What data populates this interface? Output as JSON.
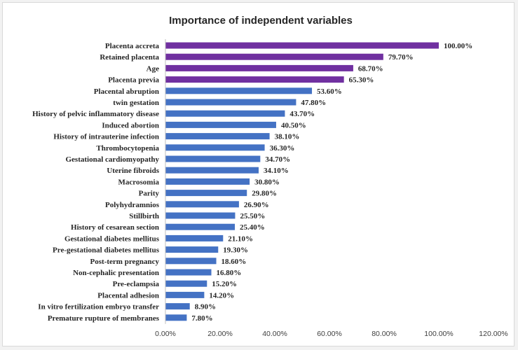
{
  "chart_data": {
    "type": "bar",
    "orientation": "horizontal",
    "title": "Importance of independent variables",
    "xlabel": "",
    "ylabel": "",
    "xlim": [
      0,
      120
    ],
    "x_ticks": [
      "0.00%",
      "20.00%",
      "40.00%",
      "60.00%",
      "80.00%",
      "100.00%",
      "120.00%"
    ],
    "grid": false,
    "legend": "none",
    "colors": {
      "highlight": "#7030a0",
      "default": "#4472c4"
    },
    "categories": [
      "Placenta accreta",
      "Retained placenta",
      "Age",
      "Placenta previa",
      "Placental abruption",
      "twin gestation",
      "History of pelvic inflammatory disease",
      "Induced abortion",
      "History of intrauterine infection",
      "Thrombocytopenia",
      "Gestational cardiomyopathy",
      "Uterine fibroids",
      "Macrosomia",
      "Parity",
      "Polyhydramnios",
      "Stillbirth",
      "History of cesarean section",
      "Gestational diabetes mellitus",
      "Pre-gestational diabetes mellitus",
      "Post-term pregnancy",
      "Non-cephalic presentation",
      "Pre-eclampsia",
      "Placental adhesion",
      "In vitro fertilization embryo transfer",
      "Premature rupture of membranes"
    ],
    "values": [
      100,
      79.7,
      68.7,
      65.3,
      53.6,
      47.8,
      43.7,
      40.5,
      38.1,
      36.3,
      34.7,
      34.1,
      30.8,
      29.8,
      26.9,
      25.5,
      25.4,
      21.1,
      19.3,
      18.6,
      16.8,
      15.2,
      14.2,
      8.9,
      7.8
    ],
    "value_labels": [
      "100.00%",
      "79.70%",
      "68.70%",
      "65.30%",
      "53.60%",
      "47.80%",
      "43.70%",
      "40.50%",
      "38.10%",
      "36.30%",
      "34.70%",
      "34.10%",
      "30.80%",
      "29.80%",
      "26.90%",
      "25.50%",
      "25.40%",
      "21.10%",
      "19.30%",
      "18.60%",
      "16.80%",
      "15.20%",
      "14.20%",
      "8.90%",
      "7.80%"
    ],
    "highlighted_categories": [
      "Placenta accreta",
      "Retained placenta",
      "Age",
      "Placenta previa"
    ]
  }
}
